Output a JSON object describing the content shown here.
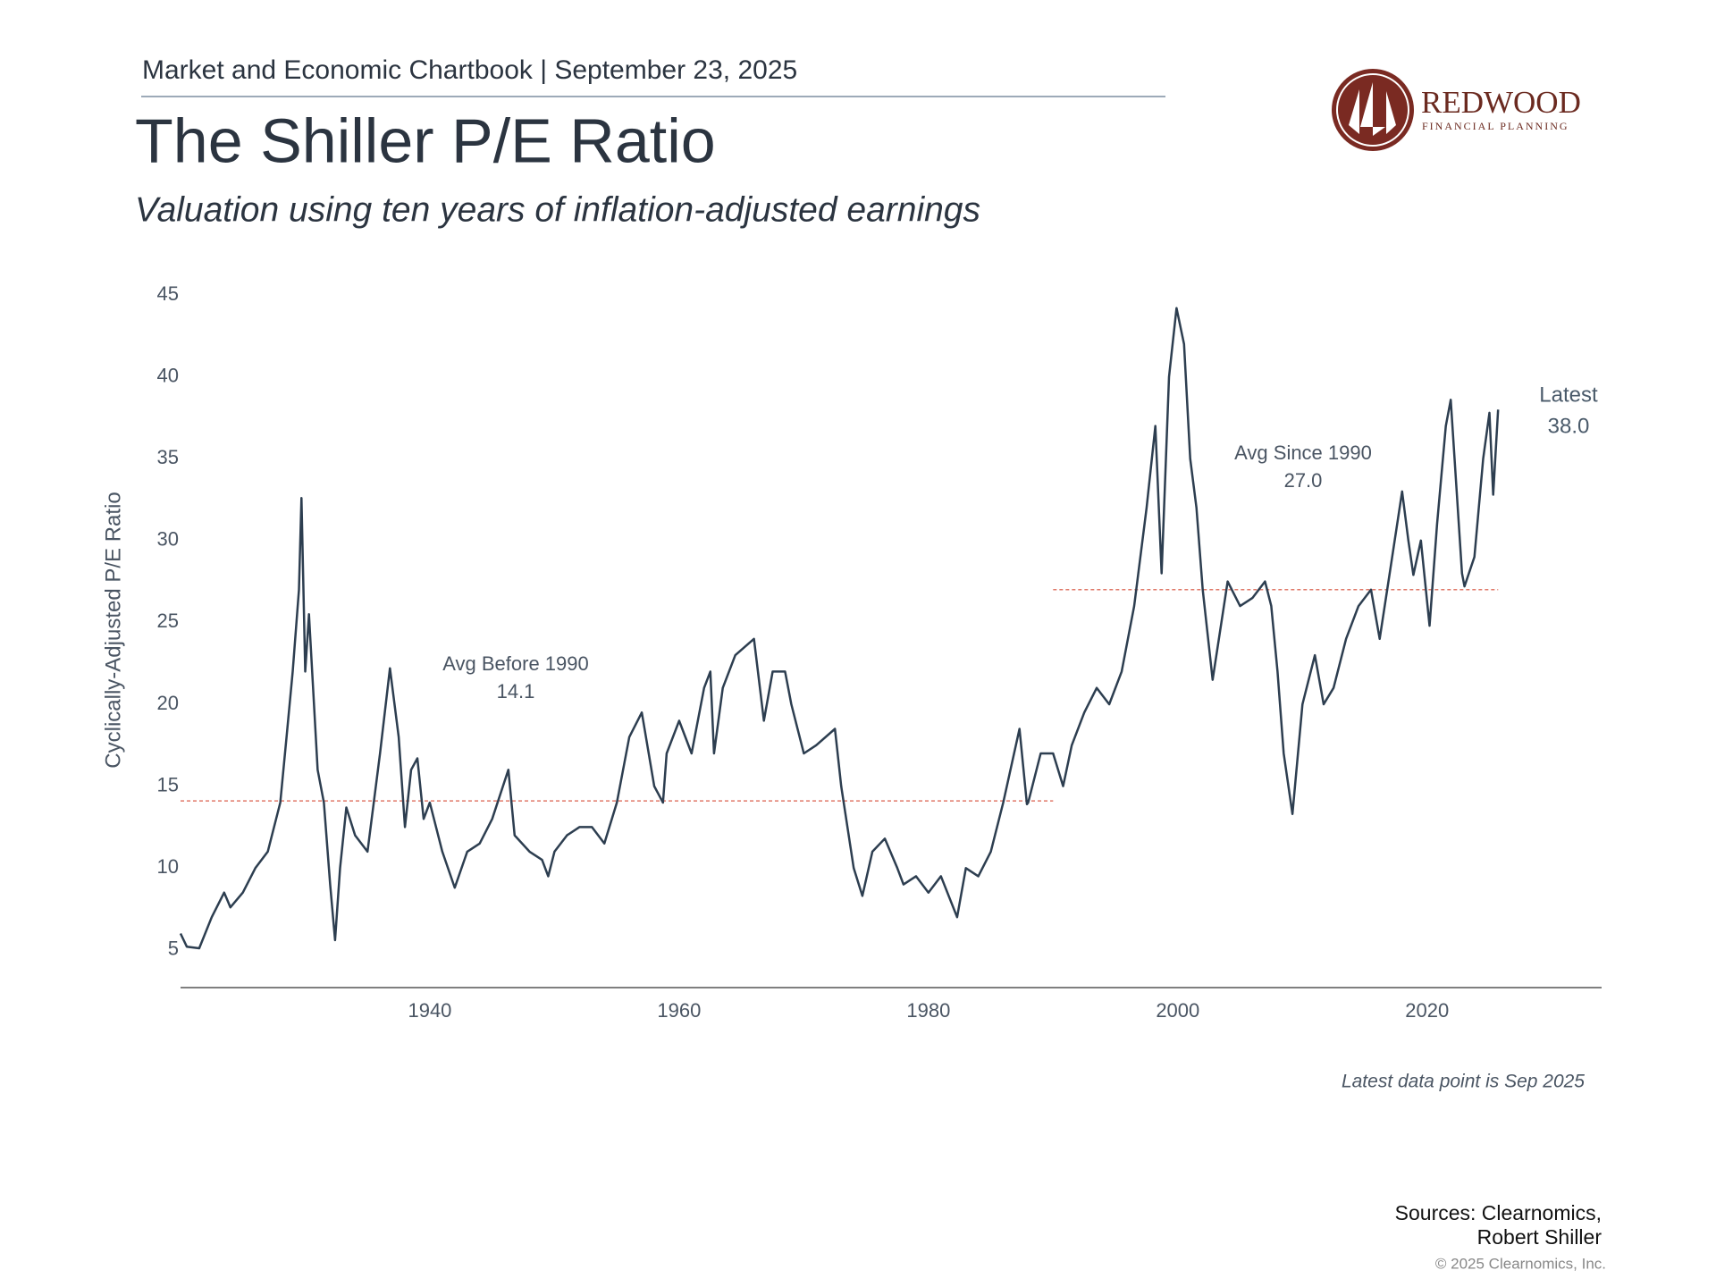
{
  "chart_data": {
    "type": "line",
    "header": "Market and Economic Chartbook | September 23, 2025",
    "title": "The Shiller P/E Ratio",
    "subtitle": "Valuation using ten years of inflation-adjusted earnings",
    "y_label": "Cyclically-Adjusted P/E Ratio",
    "xlim": [
      1920,
      2034
    ],
    "xticks": [
      1940,
      1960,
      1980,
      2000,
      2020
    ],
    "ylim": [
      2.7,
      45
    ],
    "yticks": [
      5,
      10,
      15,
      20,
      25,
      30,
      35,
      40,
      45
    ],
    "grid": false,
    "series": [
      {
        "name": "Shiller P/E",
        "color": "#2d3e50",
        "x": [
          1920.0,
          1920.5,
          1921.5,
          1922.5,
          1923.5,
          1924,
          1925,
          1926,
          1927,
          1928,
          1928.5,
          1929,
          1929.5,
          1929.7,
          1930,
          1930.3,
          1931,
          1931.5,
          1932,
          1932.4,
          1932.8,
          1933.3,
          1934,
          1935,
          1936,
          1936.8,
          1937.5,
          1938,
          1938.5,
          1939,
          1939.5,
          1940,
          1941,
          1942,
          1943,
          1944,
          1945,
          1946.3,
          1946.8,
          1948,
          1949,
          1949.5,
          1950,
          1951,
          1952,
          1953,
          1954,
          1955,
          1956,
          1957,
          1958,
          1958.7,
          1959,
          1960,
          1961,
          1962,
          1962.5,
          1962.8,
          1963.5,
          1964.5,
          1966,
          1966.8,
          1967.5,
          1968.5,
          1969,
          1970,
          1971,
          1972.5,
          1973,
          1974,
          1974.7,
          1975.5,
          1976.5,
          1977.5,
          1978,
          1979,
          1980,
          1981,
          1982.3,
          1983,
          1984,
          1985,
          1986,
          1987.3,
          1987.9,
          1988,
          1989,
          1990,
          1990.8,
          1991.5,
          1992.5,
          1993.5,
          1994.5,
          1995.5,
          1996.5,
          1997.5,
          1998.2,
          1998.7,
          1999.3,
          1999.9,
          2000.5,
          2001,
          2001.5,
          2002,
          2002.8,
          2003.5,
          2004,
          2005,
          2006,
          2007,
          2007.5,
          2008,
          2008.5,
          2009.2,
          2010,
          2011,
          2011.7,
          2012.5,
          2013.5,
          2014.5,
          2015.5,
          2016.2,
          2017,
          2018,
          2018.5,
          2018.9,
          2019.5,
          2020.2,
          2020.8,
          2021.5,
          2021.9,
          2022.8,
          2023,
          2023.8,
          2024.5,
          2025,
          2025.3,
          2025.7
        ],
        "values": [
          6.0,
          5.2,
          5.1,
          7.0,
          8.5,
          7.6,
          8.5,
          10,
          11,
          14,
          18,
          22,
          27,
          32.6,
          22,
          25.5,
          16,
          14,
          9,
          5.6,
          10,
          13.7,
          12,
          11,
          17,
          22.2,
          18,
          12.5,
          16,
          16.7,
          13,
          14,
          11,
          8.8,
          11,
          11.5,
          13,
          16,
          12,
          11,
          10.5,
          9.5,
          11,
          12,
          12.5,
          12.5,
          11.5,
          14,
          18,
          19.5,
          15,
          14,
          17,
          19,
          17,
          21,
          22,
          17,
          21,
          23,
          24,
          19,
          22,
          22,
          20,
          17,
          17.5,
          18.5,
          15,
          10,
          8.3,
          11,
          11.8,
          10,
          9,
          9.5,
          8.5,
          9.5,
          7,
          10,
          9.5,
          11,
          14,
          18.5,
          13.9,
          14,
          17,
          17,
          15,
          17.5,
          19.5,
          21,
          20,
          22,
          26,
          32,
          37,
          28,
          40,
          44.2,
          42,
          35,
          32,
          27,
          21.5,
          25,
          27.5,
          26,
          26.5,
          27.5,
          26,
          22,
          17,
          13.3,
          20,
          23,
          20,
          21,
          24,
          26,
          27,
          24,
          28,
          33,
          30,
          27.9,
          30,
          24.8,
          31,
          37,
          38.6,
          28,
          27.2,
          29,
          35,
          37.8,
          32.8,
          38.0
        ]
      }
    ],
    "reference_lines": [
      {
        "name": "Avg Before 1990",
        "value": 14.1,
        "label": "14.1",
        "from": 1920,
        "to": 1990,
        "color": "#e07a6a"
      },
      {
        "name": "Avg Since 1990",
        "value": 27.0,
        "label": "27.0",
        "from": 1990,
        "to": 2025.7,
        "color": "#e07a6a"
      }
    ],
    "latest": {
      "name": "Latest",
      "value": 38.0,
      "label": "38.0"
    },
    "note": "Latest data point is Sep 2025",
    "sources": [
      "Sources: Clearnomics,",
      "Robert Shiller"
    ],
    "copyright": "© 2025 Clearnomics, Inc.",
    "logo": {
      "name": "REDWOOD",
      "tagline": "FINANCIAL PLANNING"
    }
  }
}
